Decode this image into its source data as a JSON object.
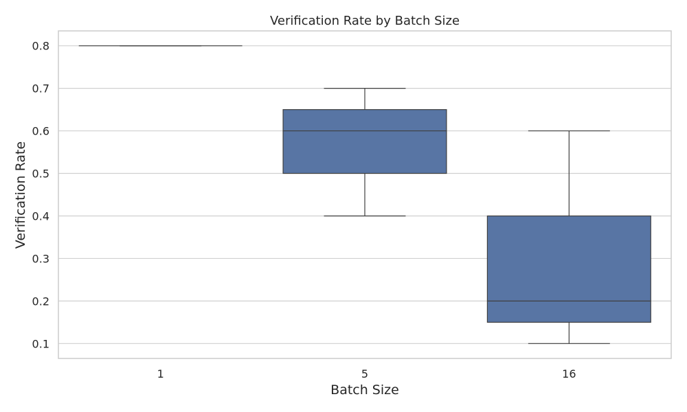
{
  "chart_data": {
    "type": "box",
    "title": "Verification Rate by Batch Size",
    "xlabel": "Batch Size",
    "ylabel": "Verification Rate",
    "categories": [
      "1",
      "5",
      "16"
    ],
    "boxes": [
      {
        "category": "1",
        "min": 0.8,
        "q1": 0.8,
        "median": 0.8,
        "q3": 0.8,
        "max": 0.8
      },
      {
        "category": "5",
        "min": 0.4,
        "q1": 0.5,
        "median": 0.6,
        "q3": 0.65,
        "max": 0.7
      },
      {
        "category": "16",
        "min": 0.1,
        "q1": 0.15,
        "median": 0.2,
        "q3": 0.4,
        "max": 0.6
      }
    ],
    "ylim": [
      0.065,
      0.835
    ],
    "yticks": [
      0.1,
      0.2,
      0.3,
      0.4,
      0.5,
      0.6,
      0.7,
      0.8
    ],
    "grid": true,
    "colors": {
      "box": "#5875a4",
      "line": "#3f3f3f",
      "grid": "#d0d0d0",
      "frame": "#cccccc"
    }
  }
}
